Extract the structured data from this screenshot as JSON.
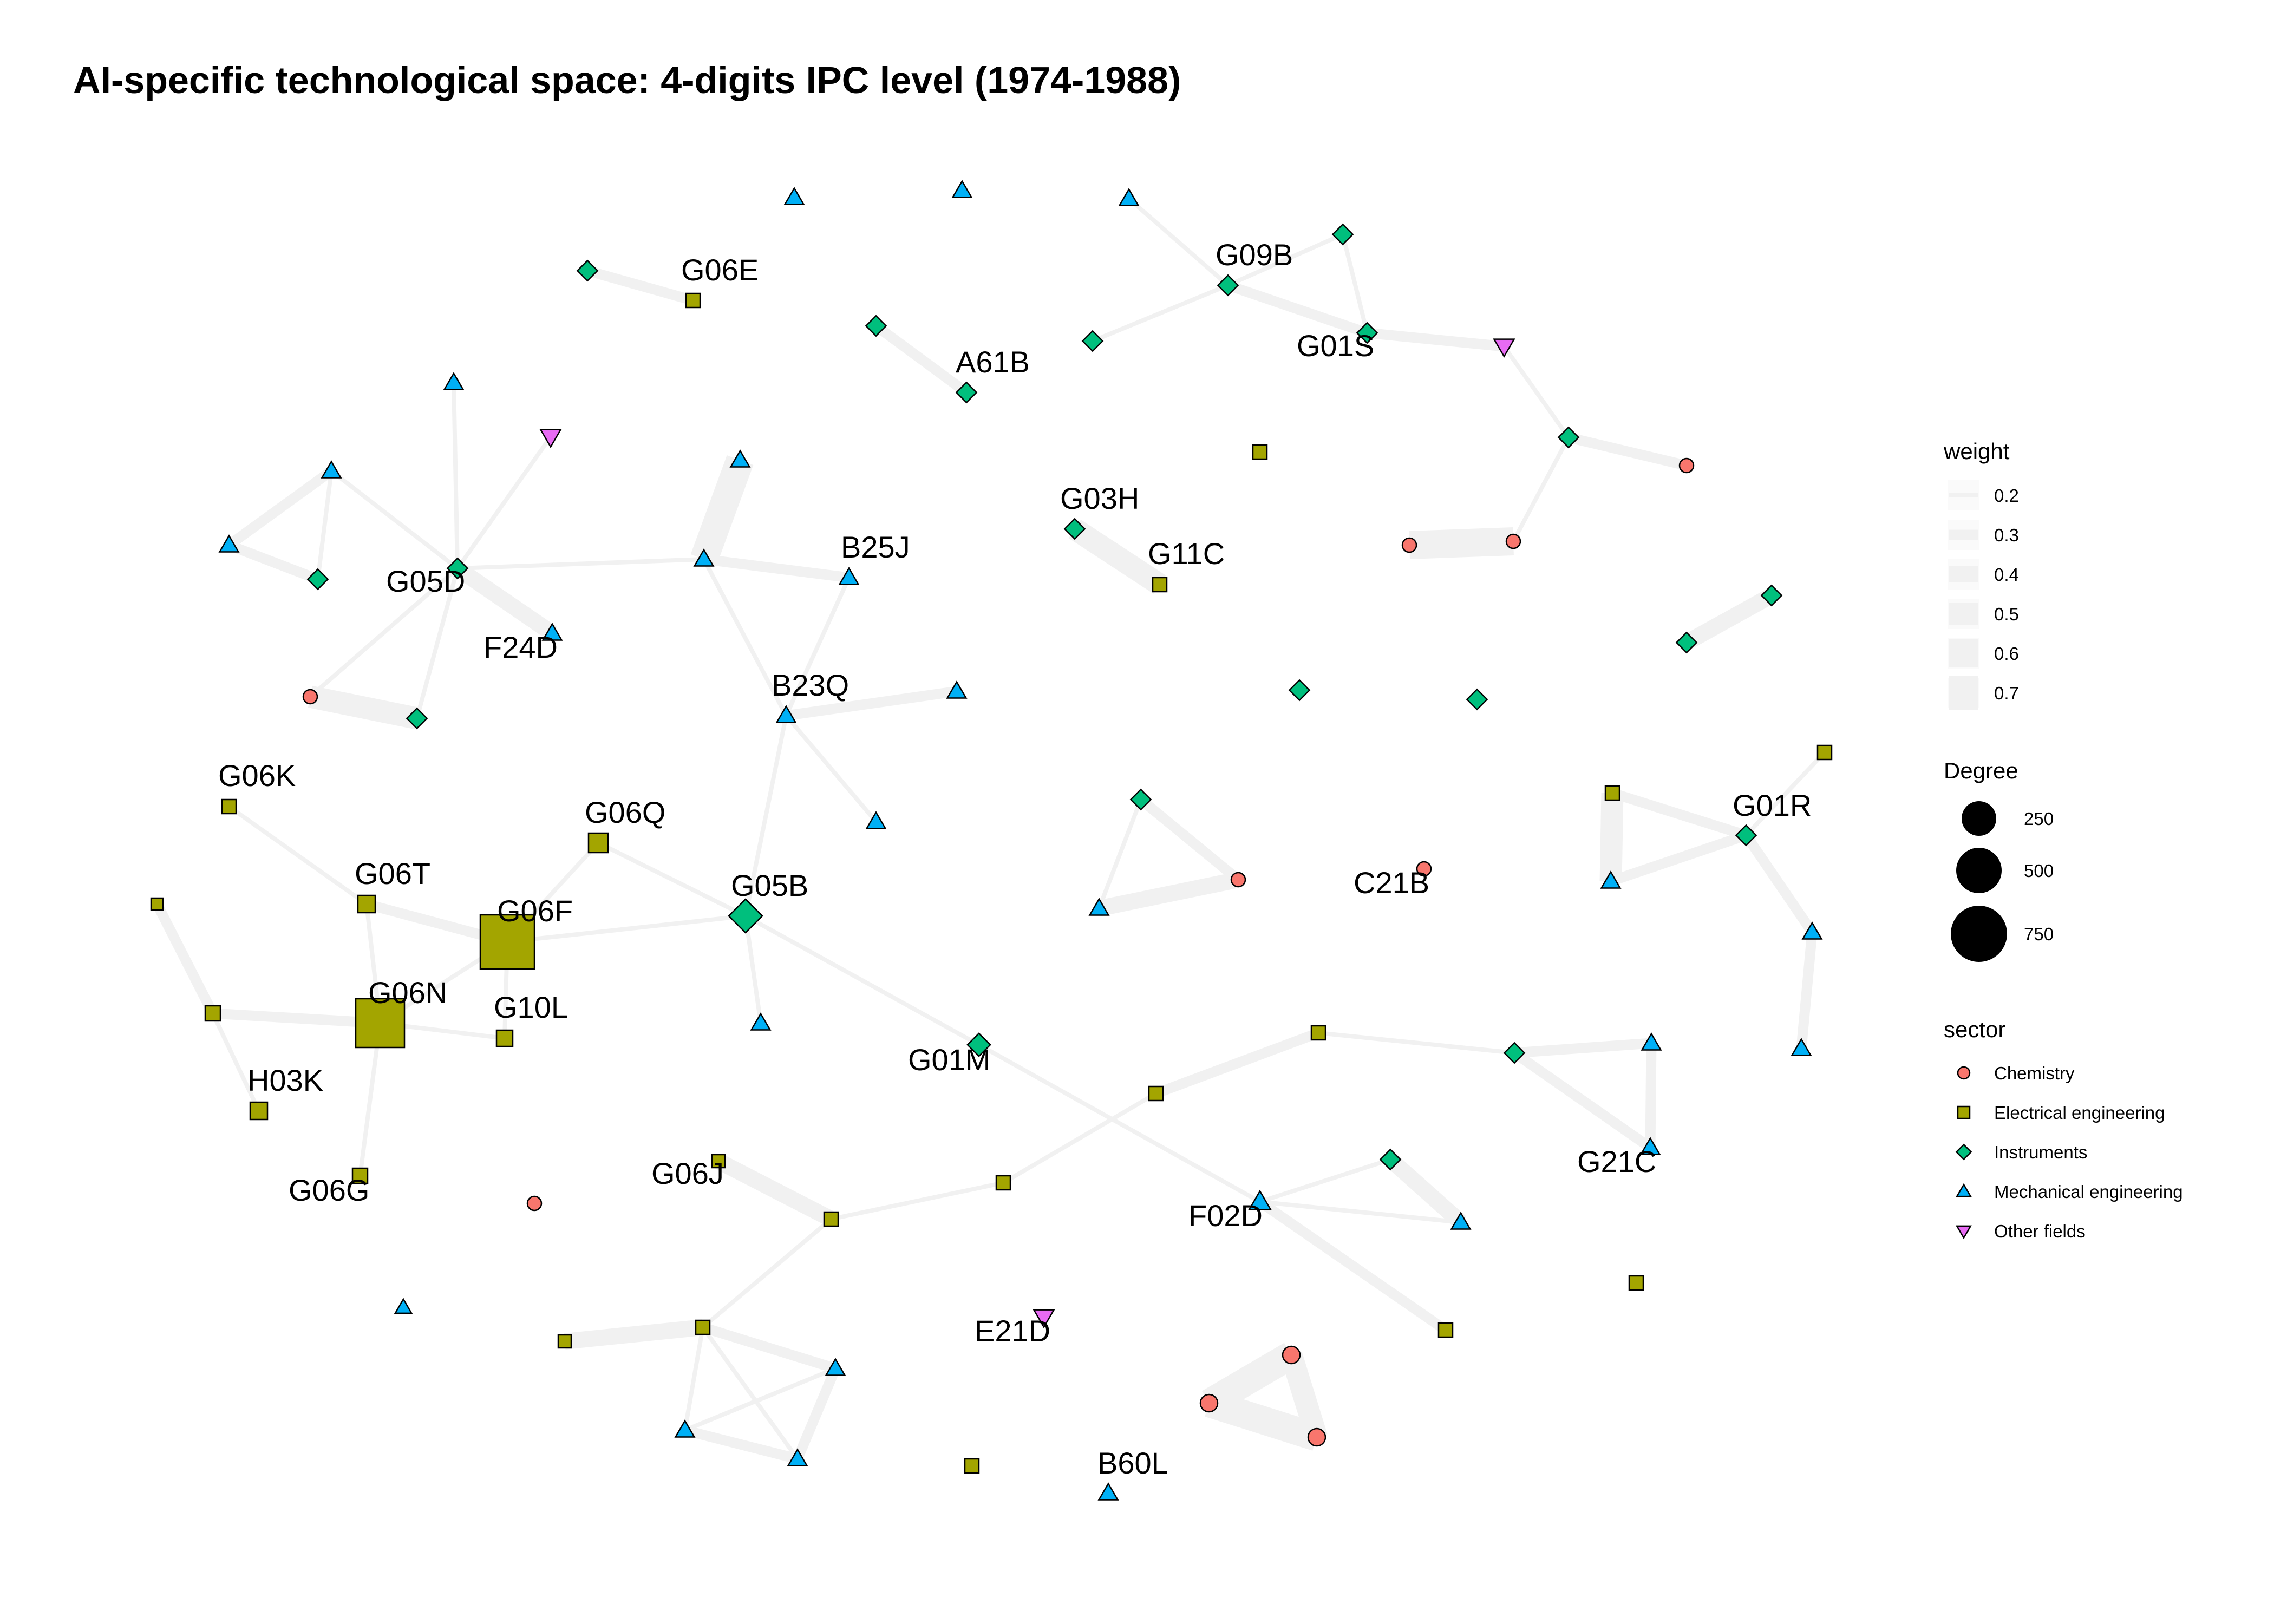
{
  "title": "AI-specific technological space: 4-digits IPC level (1974-1988)",
  "sector_colors": {
    "chem": "#F8766D",
    "elec": "#A3A500",
    "inst": "#00BF7D",
    "mech": "#00B0F6",
    "other": "#E76BF3"
  },
  "edge_color": "#f1f1f1",
  "legend": {
    "weight": {
      "title": "weight",
      "entries": [
        "0.2",
        "0.3",
        "0.4",
        "0.5",
        "0.6",
        "0.7"
      ]
    },
    "degree": {
      "title": "Degree",
      "entries": [
        "250",
        "500",
        "750"
      ]
    },
    "sector": {
      "title": "sector",
      "entries": [
        {
          "label": "Chemistry",
          "sector": "chem"
        },
        {
          "label": "Electrical engineering",
          "sector": "elec"
        },
        {
          "label": "Instruments",
          "sector": "inst"
        },
        {
          "label": "Mechanical engineering",
          "sector": "mech"
        },
        {
          "label": "Other fields",
          "sector": "other"
        }
      ]
    }
  },
  "nodes": [
    {
      "id": "G06E",
      "label": "G06E",
      "sector": "elec"
    },
    {
      "id": "n_top_inst1",
      "label": "",
      "sector": "inst"
    },
    {
      "id": "n_top_mech1",
      "label": "",
      "sector": "mech"
    },
    {
      "id": "n_top_mech2",
      "label": "",
      "sector": "mech"
    },
    {
      "id": "n_top_mech3",
      "label": "",
      "sector": "mech"
    },
    {
      "id": "n_inst_a",
      "label": "",
      "sector": "inst"
    },
    {
      "id": "A61B",
      "label": "A61B",
      "sector": "inst"
    },
    {
      "id": "n_inst_b",
      "label": "",
      "sector": "inst"
    },
    {
      "id": "G09B",
      "label": "G09B",
      "sector": "inst"
    },
    {
      "id": "n_inst_c",
      "label": "",
      "sector": "inst"
    },
    {
      "id": "G01S",
      "label": "G01S",
      "sector": "inst"
    },
    {
      "id": "n_other1",
      "label": "",
      "sector": "other"
    },
    {
      "id": "n_inst_d",
      "label": "",
      "sector": "inst"
    },
    {
      "id": "n_chem1",
      "label": "",
      "sector": "chem"
    },
    {
      "id": "n_chem2",
      "label": "",
      "sector": "chem"
    },
    {
      "id": "n_chem3",
      "label": "",
      "sector": "chem"
    },
    {
      "id": "n_elec_iso1",
      "label": "",
      "sector": "elec"
    },
    {
      "id": "G03H",
      "label": "G03H",
      "sector": "inst"
    },
    {
      "id": "G11C",
      "label": "G11C",
      "sector": "elec"
    },
    {
      "id": "n_inst_e",
      "label": "",
      "sector": "inst"
    },
    {
      "id": "n_inst_f",
      "label": "",
      "sector": "inst"
    },
    {
      "id": "n_inst_g",
      "label": "",
      "sector": "inst"
    },
    {
      "id": "n_inst_h",
      "label": "",
      "sector": "inst"
    },
    {
      "id": "n_mech_a",
      "label": "",
      "sector": "mech"
    },
    {
      "id": "n_other2",
      "label": "",
      "sector": "other"
    },
    {
      "id": "n_mech_b",
      "label": "",
      "sector": "mech"
    },
    {
      "id": "n_mech_c",
      "label": "",
      "sector": "mech"
    },
    {
      "id": "n_inst_i",
      "label": "",
      "sector": "inst"
    },
    {
      "id": "G05D",
      "label": "G05D",
      "sector": "inst"
    },
    {
      "id": "F24D",
      "label": "F24D",
      "sector": "mech"
    },
    {
      "id": "n_chem4",
      "label": "",
      "sector": "chem"
    },
    {
      "id": "n_inst_j",
      "label": "",
      "sector": "inst"
    },
    {
      "id": "n_mech_d",
      "label": "",
      "sector": "mech"
    },
    {
      "id": "n_mech_e",
      "label": "",
      "sector": "mech"
    },
    {
      "id": "B25J",
      "label": "B25J",
      "sector": "mech"
    },
    {
      "id": "B23Q",
      "label": "B23Q",
      "sector": "mech"
    },
    {
      "id": "n_mech_f",
      "label": "",
      "sector": "mech"
    },
    {
      "id": "n_mech_g",
      "label": "",
      "sector": "mech"
    },
    {
      "id": "G06K",
      "label": "G06K",
      "sector": "elec"
    },
    {
      "id": "G06Q",
      "label": "G06Q",
      "sector": "elec"
    },
    {
      "id": "G06T",
      "label": "G06T",
      "sector": "elec"
    },
    {
      "id": "G06F",
      "label": "G06F",
      "sector": "elec"
    },
    {
      "id": "G05B",
      "label": "G05B",
      "sector": "inst"
    },
    {
      "id": "n_elec_a",
      "label": "",
      "sector": "elec"
    },
    {
      "id": "n_elec_b",
      "label": "",
      "sector": "elec"
    },
    {
      "id": "G06N",
      "label": "G06N",
      "sector": "elec"
    },
    {
      "id": "G10L",
      "label": "G10L",
      "sector": "elec"
    },
    {
      "id": "H03K",
      "label": "H03K",
      "sector": "elec"
    },
    {
      "id": "G06G",
      "label": "G06G",
      "sector": "elec"
    },
    {
      "id": "n_mech_h",
      "label": "",
      "sector": "mech"
    },
    {
      "id": "G01M",
      "label": "G01M",
      "sector": "inst"
    },
    {
      "id": "n_chem5",
      "label": "",
      "sector": "chem"
    },
    {
      "id": "G06J",
      "label": "G06J",
      "sector": "elec"
    },
    {
      "id": "n_elec_c",
      "label": "",
      "sector": "elec"
    },
    {
      "id": "n_elec_d",
      "label": "",
      "sector": "elec"
    },
    {
      "id": "n_elec_e",
      "label": "",
      "sector": "elec"
    },
    {
      "id": "n_elec_f",
      "label": "",
      "sector": "elec"
    },
    {
      "id": "n_inst_k",
      "label": "",
      "sector": "inst"
    },
    {
      "id": "n_mech_i",
      "label": "",
      "sector": "mech"
    },
    {
      "id": "G21C",
      "label": "G21C",
      "sector": "mech"
    },
    {
      "id": "n_inst_l",
      "label": "",
      "sector": "inst"
    },
    {
      "id": "n_mech_j",
      "label": "",
      "sector": "mech"
    },
    {
      "id": "n_chem6",
      "label": "",
      "sector": "chem"
    },
    {
      "id": "n_mech_k",
      "label": "",
      "sector": "mech"
    },
    {
      "id": "C21B",
      "label": "C21B",
      "sector": "chem"
    },
    {
      "id": "n_elec_g",
      "label": "",
      "sector": "elec"
    },
    {
      "id": "n_elec_h",
      "label": "",
      "sector": "elec"
    },
    {
      "id": "G01R",
      "label": "G01R",
      "sector": "inst"
    },
    {
      "id": "n_mech_l",
      "label": "",
      "sector": "mech"
    },
    {
      "id": "n_mech_m",
      "label": "",
      "sector": "mech"
    },
    {
      "id": "n_mech_n",
      "label": "",
      "sector": "mech"
    },
    {
      "id": "n_inst_m",
      "label": "",
      "sector": "inst"
    },
    {
      "id": "F02D",
      "label": "F02D",
      "sector": "mech"
    },
    {
      "id": "n_mech_o",
      "label": "",
      "sector": "mech"
    },
    {
      "id": "n_elec_i",
      "label": "",
      "sector": "elec"
    },
    {
      "id": "n_elec_j",
      "label": "",
      "sector": "elec"
    },
    {
      "id": "n_mech_p",
      "label": "",
      "sector": "mech"
    },
    {
      "id": "n_elec_k",
      "label": "",
      "sector": "elec"
    },
    {
      "id": "n_elec_l",
      "label": "",
      "sector": "elec"
    },
    {
      "id": "n_mech_q",
      "label": "",
      "sector": "mech"
    },
    {
      "id": "n_mech_r",
      "label": "",
      "sector": "mech"
    },
    {
      "id": "n_mech_s",
      "label": "",
      "sector": "mech"
    },
    {
      "id": "E21D",
      "label": "E21D",
      "sector": "other"
    },
    {
      "id": "n_elec_m",
      "label": "",
      "sector": "elec"
    },
    {
      "id": "B60L",
      "label": "B60L",
      "sector": "mech"
    },
    {
      "id": "n_chem7",
      "label": "",
      "sector": "chem"
    },
    {
      "id": "n_chem8",
      "label": "",
      "sector": "chem"
    },
    {
      "id": "n_chem9",
      "label": "",
      "sector": "chem"
    }
  ],
  "edges": [
    [
      "n_top_inst1",
      "G06E",
      0.3
    ],
    [
      "n_inst_a",
      "A61B",
      0.3
    ],
    [
      "n_inst_b",
      "G09B",
      0.2
    ],
    [
      "G09B",
      "n_inst_c",
      0.2
    ],
    [
      "G09B",
      "G01S",
      0.3
    ],
    [
      "n_top_mech3",
      "G09B",
      0.2
    ],
    [
      "G01S",
      "n_inst_c",
      0.2
    ],
    [
      "G01S",
      "n_other1",
      0.3
    ],
    [
      "n_other1",
      "n_inst_d",
      0.2
    ],
    [
      "n_inst_d",
      "n_chem1",
      0.3
    ],
    [
      "n_inst_d",
      "n_chem2",
      0.2
    ],
    [
      "n_chem2",
      "n_chem3",
      0.6
    ],
    [
      "G03H",
      "G11C",
      0.5
    ],
    [
      "n_inst_f",
      "n_inst_g",
      0.4
    ],
    [
      "n_mech_a",
      "G05D",
      0.2
    ],
    [
      "n_other2",
      "G05D",
      0.2
    ],
    [
      "n_mech_b",
      "n_mech_c",
      0.3
    ],
    [
      "n_mech_b",
      "n_inst_i",
      0.3
    ],
    [
      "n_mech_c",
      "n_inst_i",
      0.2
    ],
    [
      "n_mech_c",
      "G05D",
      0.2
    ],
    [
      "G05D",
      "F24D",
      0.4
    ],
    [
      "G05D",
      "n_chem4",
      0.2
    ],
    [
      "G05D",
      "n_inst_j",
      0.2
    ],
    [
      "G05D",
      "n_mech_e",
      0.2
    ],
    [
      "n_chem4",
      "n_inst_j",
      0.5
    ],
    [
      "n_mech_d",
      "n_mech_e",
      0.6
    ],
    [
      "n_mech_e",
      "B25J",
      0.3
    ],
    [
      "n_mech_e",
      "B23Q",
      0.2
    ],
    [
      "B25J",
      "B23Q",
      0.2
    ],
    [
      "B23Q",
      "n_mech_f",
      0.3
    ],
    [
      "B23Q",
      "n_mech_g",
      0.2
    ],
    [
      "B23Q",
      "G05B",
      0.2
    ],
    [
      "G06K",
      "G06T",
      0.2
    ],
    [
      "G06T",
      "G06F",
      0.3
    ],
    [
      "G06T",
      "G06N",
      0.2
    ],
    [
      "G06Q",
      "G06F",
      0.2
    ],
    [
      "G06Q",
      "G05B",
      0.2
    ],
    [
      "G06F",
      "G05B",
      0.2
    ],
    [
      "G06F",
      "G06N",
      0.2
    ],
    [
      "G06F",
      "G10L",
      0.2
    ],
    [
      "n_elec_a",
      "n_elec_b",
      0.3
    ],
    [
      "n_elec_b",
      "G06N",
      0.3
    ],
    [
      "n_elec_b",
      "H03K",
      0.2
    ],
    [
      "G06N",
      "G10L",
      0.2
    ],
    [
      "G06N",
      "G06G",
      0.2
    ],
    [
      "G05B",
      "n_mech_h",
      0.2
    ],
    [
      "G05B",
      "G01M",
      0.2
    ],
    [
      "G01M",
      "F02D",
      0.2
    ],
    [
      "G06J",
      "n_elec_c",
      0.4
    ],
    [
      "n_elec_c",
      "n_elec_d",
      0.2
    ],
    [
      "n_elec_c",
      "n_elec_k",
      0.2
    ],
    [
      "n_elec_d",
      "n_elec_e",
      0.2
    ],
    [
      "n_elec_e",
      "n_elec_f",
      0.3
    ],
    [
      "n_elec_f",
      "n_inst_k",
      0.2
    ],
    [
      "n_inst_k",
      "n_mech_i",
      0.3
    ],
    [
      "n_inst_k",
      "G21C",
      0.3
    ],
    [
      "n_mech_i",
      "G21C",
      0.3
    ],
    [
      "n_inst_l",
      "n_chem6",
      0.3
    ],
    [
      "n_inst_l",
      "n_mech_j",
      0.2
    ],
    [
      "n_mech_j",
      "n_chem6",
      0.4
    ],
    [
      "n_elec_g",
      "n_mech_k",
      0.5
    ],
    [
      "n_elec_g",
      "G01R",
      0.3
    ],
    [
      "n_mech_k",
      "G01R",
      0.3
    ],
    [
      "G01R",
      "n_elec_h",
      0.2
    ],
    [
      "G01R",
      "n_mech_l",
      0.3
    ],
    [
      "n_mech_l",
      "n_mech_m",
      0.3
    ],
    [
      "F02D",
      "n_inst_m",
      0.2
    ],
    [
      "F02D",
      "n_mech_o",
      0.2
    ],
    [
      "n_inst_m",
      "n_mech_o",
      0.4
    ],
    [
      "F02D",
      "n_elec_i",
      0.3
    ],
    [
      "n_elec_l",
      "n_elec_k",
      0.4
    ],
    [
      "n_elec_k",
      "n_mech_q",
      0.3
    ],
    [
      "n_elec_k",
      "n_mech_r",
      0.2
    ],
    [
      "n_elec_k",
      "n_mech_s",
      0.2
    ],
    [
      "n_mech_q",
      "n_mech_r",
      0.2
    ],
    [
      "n_mech_q",
      "n_mech_s",
      0.3
    ],
    [
      "n_mech_r",
      "n_mech_s",
      0.3
    ],
    [
      "n_chem7",
      "n_chem8",
      0.6
    ],
    [
      "n_chem7",
      "n_chem9",
      0.5
    ],
    [
      "n_chem8",
      "n_chem9",
      0.6
    ]
  ]
}
